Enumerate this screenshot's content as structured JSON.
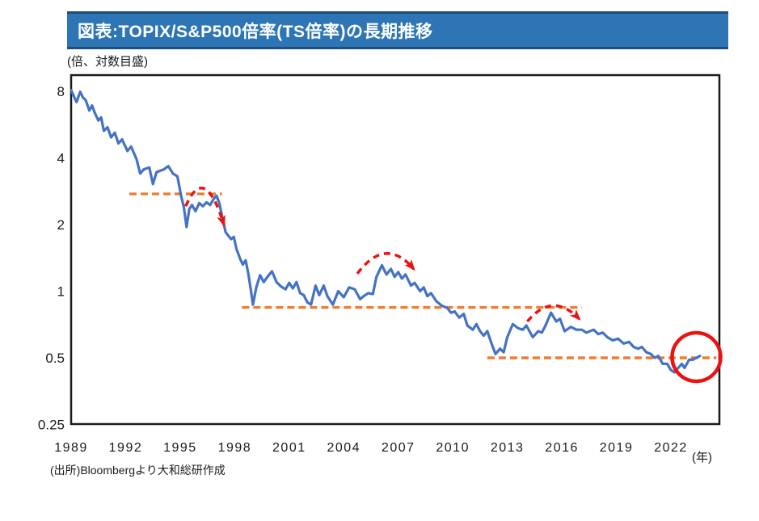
{
  "header": {
    "title": "図表:TOPIX/S&P500倍率(TS倍率)の長期推移"
  },
  "source": "(出所)Bloombergより大和総研作成",
  "colors": {
    "title_bg": "#2E75B6",
    "title_border": "#1F4E79",
    "series": "#4472C4",
    "guide": "#ED7D31",
    "annotation": "#EE1111",
    "frame": "#1A1A1A"
  },
  "chart_data": {
    "type": "line",
    "title": "TOPIX/S&P500倍率(TS倍率)の長期推移",
    "ylabel": "(倍、対数目盛)",
    "xlabel": "(年)",
    "y_scale": "log",
    "grid": false,
    "legend": "none",
    "ylim": [
      0.25,
      9.45
    ],
    "xlim": [
      1989,
      2024.7
    ],
    "y_ticks": [
      8,
      4,
      2,
      1,
      0.5,
      0.25
    ],
    "y_tick_labels": [
      "8",
      "4",
      "2",
      "1",
      "0.5",
      "0.25"
    ],
    "x_ticks": [
      1989,
      1992,
      1995,
      1998,
      2001,
      2004,
      2007,
      2010,
      2013,
      2016,
      2019,
      2022
    ],
    "series": [
      {
        "name": "TOPIX/S&P500倍率(TS倍率)",
        "points": [
          [
            1989.0,
            8.1
          ],
          [
            1989.15,
            7.6
          ],
          [
            1989.3,
            7.15
          ],
          [
            1989.5,
            7.95
          ],
          [
            1989.65,
            7.5
          ],
          [
            1989.8,
            7.3
          ],
          [
            1990.0,
            6.55
          ],
          [
            1990.15,
            6.9
          ],
          [
            1990.3,
            6.4
          ],
          [
            1990.5,
            5.9
          ],
          [
            1990.65,
            6.1
          ],
          [
            1990.8,
            5.3
          ],
          [
            1991.0,
            5.5
          ],
          [
            1991.2,
            4.95
          ],
          [
            1991.4,
            5.2
          ],
          [
            1991.6,
            4.65
          ],
          [
            1991.8,
            4.85
          ],
          [
            1992.1,
            4.3
          ],
          [
            1992.3,
            4.5
          ],
          [
            1992.6,
            3.95
          ],
          [
            1992.8,
            3.4
          ],
          [
            1993.0,
            3.55
          ],
          [
            1993.3,
            3.62
          ],
          [
            1993.5,
            3.05
          ],
          [
            1993.7,
            3.45
          ],
          [
            1993.9,
            3.5
          ],
          [
            1994.1,
            3.55
          ],
          [
            1994.35,
            3.67
          ],
          [
            1994.6,
            3.4
          ],
          [
            1994.85,
            3.3
          ],
          [
            1995.05,
            2.7
          ],
          [
            1995.2,
            2.4
          ],
          [
            1995.35,
            1.95
          ],
          [
            1995.5,
            2.35
          ],
          [
            1995.65,
            2.45
          ],
          [
            1995.85,
            2.3
          ],
          [
            1996.05,
            2.5
          ],
          [
            1996.25,
            2.42
          ],
          [
            1996.45,
            2.52
          ],
          [
            1996.65,
            2.45
          ],
          [
            1996.85,
            2.62
          ],
          [
            1997.0,
            2.7
          ],
          [
            1997.15,
            2.5
          ],
          [
            1997.3,
            2.2
          ],
          [
            1997.5,
            1.85
          ],
          [
            1997.65,
            1.78
          ],
          [
            1997.8,
            1.72
          ],
          [
            1997.95,
            1.76
          ],
          [
            1998.1,
            1.55
          ],
          [
            1998.3,
            1.4
          ],
          [
            1998.45,
            1.32
          ],
          [
            1998.6,
            1.38
          ],
          [
            1998.75,
            1.2
          ],
          [
            1998.9,
            1.0
          ],
          [
            1999.0,
            0.87
          ],
          [
            1999.2,
            1.05
          ],
          [
            1999.4,
            1.18
          ],
          [
            1999.6,
            1.1
          ],
          [
            1999.8,
            1.16
          ],
          [
            2000.05,
            1.23
          ],
          [
            2000.3,
            1.1
          ],
          [
            2000.55,
            1.05
          ],
          [
            2000.8,
            1.02
          ],
          [
            2001.0,
            1.09
          ],
          [
            2001.2,
            1.03
          ],
          [
            2001.4,
            1.1
          ],
          [
            2001.6,
            0.98
          ],
          [
            2001.8,
            0.96
          ],
          [
            2002.0,
            0.89
          ],
          [
            2002.2,
            0.87
          ],
          [
            2002.45,
            1.06
          ],
          [
            2002.65,
            0.96
          ],
          [
            2002.9,
            1.06
          ],
          [
            2003.1,
            0.95
          ],
          [
            2003.4,
            0.87
          ],
          [
            2003.7,
            1.0
          ],
          [
            2004.0,
            0.94
          ],
          [
            2004.3,
            1.04
          ],
          [
            2004.6,
            1.02
          ],
          [
            2004.9,
            0.92
          ],
          [
            2005.1,
            0.95
          ],
          [
            2005.35,
            0.98
          ],
          [
            2005.6,
            0.97
          ],
          [
            2005.8,
            1.16
          ],
          [
            2006.1,
            1.31
          ],
          [
            2006.35,
            1.19
          ],
          [
            2006.6,
            1.26
          ],
          [
            2006.8,
            1.16
          ],
          [
            2007.0,
            1.22
          ],
          [
            2007.2,
            1.14
          ],
          [
            2007.4,
            1.19
          ],
          [
            2007.7,
            1.06
          ],
          [
            2007.9,
            1.09
          ],
          [
            2008.2,
            1.0
          ],
          [
            2008.4,
            1.04
          ],
          [
            2008.6,
            0.95
          ],
          [
            2008.8,
            0.98
          ],
          [
            2009.1,
            0.9
          ],
          [
            2009.4,
            0.86
          ],
          [
            2009.7,
            0.84
          ],
          [
            2009.9,
            0.8
          ],
          [
            2010.1,
            0.81
          ],
          [
            2010.35,
            0.76
          ],
          [
            2010.6,
            0.79
          ],
          [
            2010.8,
            0.7
          ],
          [
            2011.1,
            0.67
          ],
          [
            2011.3,
            0.71
          ],
          [
            2011.5,
            0.66
          ],
          [
            2011.7,
            0.63
          ],
          [
            2011.9,
            0.66
          ],
          [
            2012.1,
            0.59
          ],
          [
            2012.35,
            0.52
          ],
          [
            2012.6,
            0.55
          ],
          [
            2012.8,
            0.53
          ],
          [
            2013.0,
            0.62
          ],
          [
            2013.3,
            0.71
          ],
          [
            2013.6,
            0.68
          ],
          [
            2013.85,
            0.67
          ],
          [
            2014.05,
            0.7
          ],
          [
            2014.4,
            0.62
          ],
          [
            2014.7,
            0.66
          ],
          [
            2014.9,
            0.65
          ],
          [
            2015.1,
            0.7
          ],
          [
            2015.4,
            0.8
          ],
          [
            2015.7,
            0.73
          ],
          [
            2015.9,
            0.75
          ],
          [
            2016.15,
            0.66
          ],
          [
            2016.5,
            0.69
          ],
          [
            2016.8,
            0.67
          ],
          [
            2017.1,
            0.67
          ],
          [
            2017.35,
            0.65
          ],
          [
            2017.75,
            0.67
          ],
          [
            2018.0,
            0.64
          ],
          [
            2018.25,
            0.65
          ],
          [
            2018.5,
            0.62
          ],
          [
            2018.8,
            0.6
          ],
          [
            2019.1,
            0.61
          ],
          [
            2019.4,
            0.58
          ],
          [
            2019.7,
            0.59
          ],
          [
            2019.95,
            0.56
          ],
          [
            2020.2,
            0.55
          ],
          [
            2020.4,
            0.56
          ],
          [
            2020.65,
            0.53
          ],
          [
            2020.9,
            0.52
          ],
          [
            2021.1,
            0.5
          ],
          [
            2021.3,
            0.51
          ],
          [
            2021.55,
            0.47
          ],
          [
            2021.8,
            0.47
          ],
          [
            2022.0,
            0.44
          ],
          [
            2022.2,
            0.43
          ],
          [
            2022.4,
            0.45
          ],
          [
            2022.6,
            0.47
          ],
          [
            2022.75,
            0.45
          ],
          [
            2023.0,
            0.49
          ],
          [
            2023.2,
            0.49
          ],
          [
            2023.4,
            0.5
          ],
          [
            2023.6,
            0.51
          ]
        ]
      }
    ],
    "guide_lines": [
      {
        "value": 2.75,
        "from": 1992.2,
        "to": 1997.3
      },
      {
        "value": 0.845,
        "from": 1998.4,
        "to": 2017.1
      },
      {
        "value": 0.5,
        "from": 2011.9,
        "to": 2024.5
      }
    ],
    "arrows": [
      {
        "from": [
          1995.3,
          2.42
        ],
        "peak": [
          1996.35,
          2.9
        ],
        "to": [
          1997.4,
          2.0
        ]
      },
      {
        "from": [
          2004.75,
          1.2
        ],
        "peak": [
          2006.3,
          1.48
        ],
        "to": [
          2007.85,
          1.26
        ]
      },
      {
        "from": [
          2014.1,
          0.73
        ],
        "peak": [
          2015.5,
          0.86
        ],
        "to": [
          2016.95,
          0.75
        ]
      }
    ],
    "highlight_circle": {
      "year": 2023.4,
      "value": 0.5,
      "radius_px": 30
    }
  }
}
